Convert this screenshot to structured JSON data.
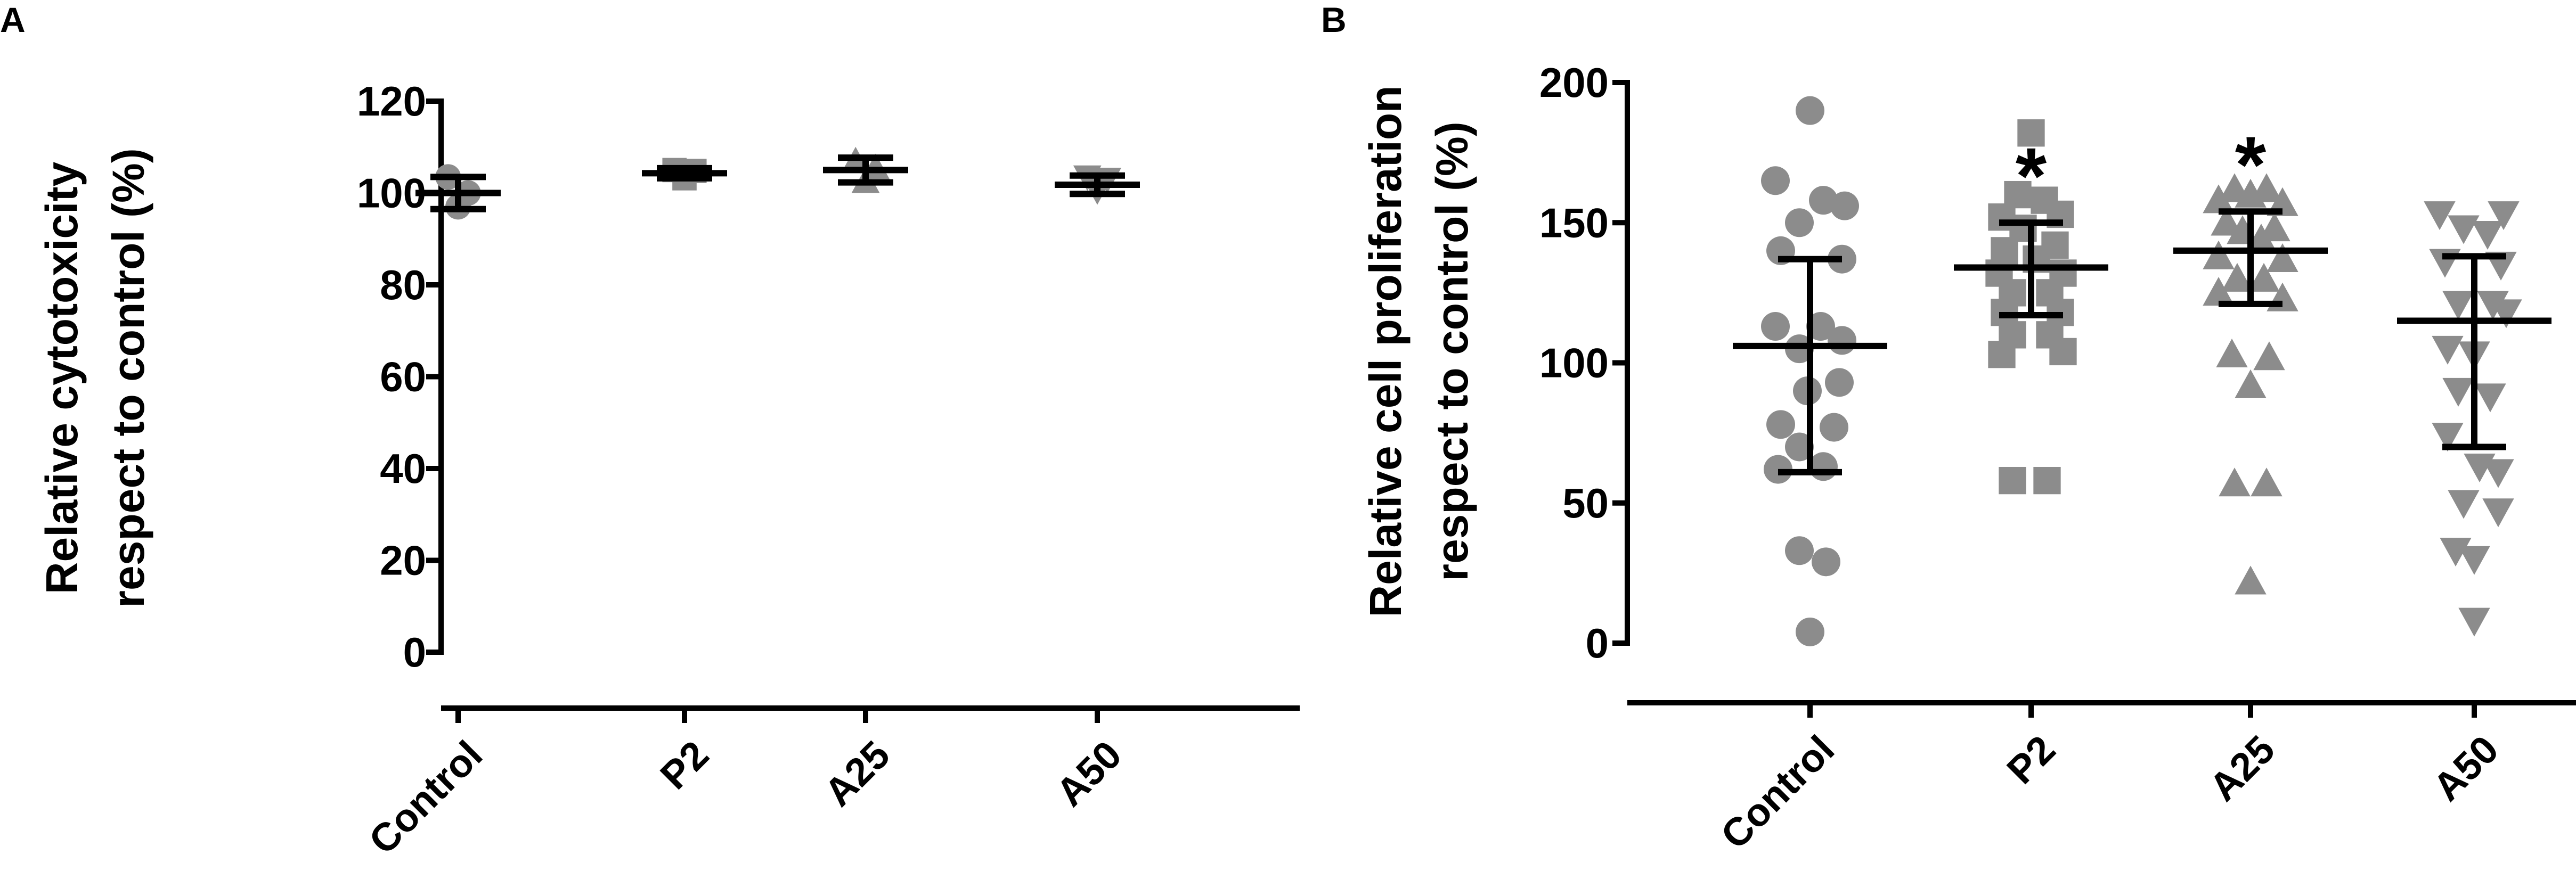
{
  "chart_data": [
    {
      "panel": "A",
      "type": "scatter",
      "ylabel_lines": [
        "Relative cytotoxicity",
        "respect to control (%)"
      ],
      "ylim": [
        0,
        120
      ],
      "yticks": [
        0,
        20,
        40,
        60,
        80,
        100,
        120
      ],
      "categories": [
        "Control",
        "P2",
        "A25",
        "A50"
      ],
      "markers": [
        "circle",
        "square",
        "triangle-up",
        "triangle-down"
      ],
      "color": "#8c8c8c",
      "significance": [
        "",
        "",
        "",
        ""
      ],
      "series": [
        {
          "category": "Control",
          "mean": 100,
          "sd_low": 96.5,
          "sd_high": 103.5,
          "points": [
            {
              "dx": -0.25,
              "y": 103.5
            },
            {
              "dx": 0.0,
              "y": 97.0
            },
            {
              "dx": 0.25,
              "y": 100.0
            }
          ]
        },
        {
          "category": "P2",
          "mean": 104.3,
          "sd_low": 103.2,
          "sd_high": 105.4,
          "points": [
            {
              "dx": -0.25,
              "y": 105.0
            },
            {
              "dx": 0.0,
              "y": 103.2
            },
            {
              "dx": 0.25,
              "y": 104.8
            }
          ]
        },
        {
          "category": "A25",
          "mean": 105,
          "sd_low": 102.3,
          "sd_high": 107.7,
          "points": [
            {
              "dx": -0.25,
              "y": 107.0
            },
            {
              "dx": 0.0,
              "y": 102.5
            },
            {
              "dx": 0.25,
              "y": 105.5
            }
          ]
        },
        {
          "category": "A50",
          "mean": 101.8,
          "sd_low": 99.8,
          "sd_high": 103.8,
          "points": [
            {
              "dx": -0.25,
              "y": 103.5
            },
            {
              "dx": 0.0,
              "y": 100.5
            },
            {
              "dx": 0.25,
              "y": 103.0
            }
          ]
        }
      ]
    },
    {
      "panel": "B",
      "type": "scatter",
      "ylabel_lines": [
        "Relative cell proliferation",
        "respect to control (%)"
      ],
      "ylim": [
        0,
        200
      ],
      "yticks": [
        0,
        50,
        100,
        150,
        200
      ],
      "categories": [
        "Control",
        "P2",
        "A25",
        "A50"
      ],
      "markers": [
        "circle",
        "square",
        "triangle-up",
        "triangle-down"
      ],
      "color": "#8c8c8c",
      "significance": [
        "",
        "*",
        "*",
        ""
      ],
      "series": [
        {
          "category": "Control",
          "mean": 106,
          "sd_low": 61,
          "sd_high": 137,
          "points": [
            {
              "dx": 0.0,
              "y": 190
            },
            {
              "dx": -0.65,
              "y": 165
            },
            {
              "dx": 0.25,
              "y": 158
            },
            {
              "dx": 0.65,
              "y": 156
            },
            {
              "dx": -0.2,
              "y": 150
            },
            {
              "dx": -0.55,
              "y": 140
            },
            {
              "dx": 0.6,
              "y": 137
            },
            {
              "dx": -0.65,
              "y": 113
            },
            {
              "dx": 0.2,
              "y": 113
            },
            {
              "dx": 0.6,
              "y": 108
            },
            {
              "dx": -0.2,
              "y": 105
            },
            {
              "dx": 0.55,
              "y": 93
            },
            {
              "dx": -0.05,
              "y": 90
            },
            {
              "dx": -0.55,
              "y": 78
            },
            {
              "dx": 0.45,
              "y": 77
            },
            {
              "dx": -0.2,
              "y": 70
            },
            {
              "dx": 0.25,
              "y": 63
            },
            {
              "dx": -0.6,
              "y": 62
            },
            {
              "dx": -0.2,
              "y": 33
            },
            {
              "dx": 0.3,
              "y": 29
            },
            {
              "dx": 0.0,
              "y": 4
            }
          ]
        },
        {
          "category": "P2",
          "mean": 134,
          "sd_low": 117,
          "sd_high": 150,
          "points": [
            {
              "dx": 0.0,
              "y": 182
            },
            {
              "dx": -0.25,
              "y": 160
            },
            {
              "dx": 0.25,
              "y": 158
            },
            {
              "dx": -0.55,
              "y": 152
            },
            {
              "dx": 0.55,
              "y": 153
            },
            {
              "dx": -0.15,
              "y": 148
            },
            {
              "dx": 0.45,
              "y": 142
            },
            {
              "dx": -0.5,
              "y": 140
            },
            {
              "dx": 0.1,
              "y": 137
            },
            {
              "dx": -0.6,
              "y": 132
            },
            {
              "dx": 0.6,
              "y": 132
            },
            {
              "dx": -0.35,
              "y": 125
            },
            {
              "dx": 0.35,
              "y": 125
            },
            {
              "dx": -0.5,
              "y": 118
            },
            {
              "dx": 0.55,
              "y": 118
            },
            {
              "dx": -0.35,
              "y": 110
            },
            {
              "dx": 0.35,
              "y": 110
            },
            {
              "dx": -0.55,
              "y": 103
            },
            {
              "dx": 0.6,
              "y": 104
            },
            {
              "dx": -0.35,
              "y": 58
            },
            {
              "dx": 0.3,
              "y": 58
            }
          ]
        },
        {
          "category": "A25",
          "mean": 140,
          "sd_low": 121,
          "sd_high": 154,
          "points": [
            {
              "dx": -0.3,
              "y": 162
            },
            {
              "dx": 0.3,
              "y": 162
            },
            {
              "dx": -0.6,
              "y": 158
            },
            {
              "dx": 0.0,
              "y": 160
            },
            {
              "dx": 0.6,
              "y": 157
            },
            {
              "dx": -0.45,
              "y": 150
            },
            {
              "dx": 0.45,
              "y": 148
            },
            {
              "dx": -0.15,
              "y": 147
            },
            {
              "dx": 0.2,
              "y": 144
            },
            {
              "dx": -0.6,
              "y": 138
            },
            {
              "dx": 0.6,
              "y": 137
            },
            {
              "dx": -0.25,
              "y": 130
            },
            {
              "dx": 0.25,
              "y": 130
            },
            {
              "dx": -0.6,
              "y": 125
            },
            {
              "dx": 0.6,
              "y": 123
            },
            {
              "dx": -0.35,
              "y": 103
            },
            {
              "dx": 0.35,
              "y": 102
            },
            {
              "dx": 0.0,
              "y": 92
            },
            {
              "dx": -0.3,
              "y": 57
            },
            {
              "dx": 0.3,
              "y": 57
            },
            {
              "dx": 0.0,
              "y": 22
            }
          ]
        },
        {
          "category": "A50",
          "mean": 115,
          "sd_low": 70,
          "sd_high": 138,
          "points": [
            {
              "dx": -0.65,
              "y": 153
            },
            {
              "dx": 0.55,
              "y": 153
            },
            {
              "dx": -0.2,
              "y": 148
            },
            {
              "dx": 0.25,
              "y": 146
            },
            {
              "dx": -0.55,
              "y": 136
            },
            {
              "dx": 0.5,
              "y": 135
            },
            {
              "dx": -0.3,
              "y": 121
            },
            {
              "dx": 0.35,
              "y": 121
            },
            {
              "dx": 0.6,
              "y": 118
            },
            {
              "dx": -0.5,
              "y": 105
            },
            {
              "dx": 0.0,
              "y": 103
            },
            {
              "dx": -0.3,
              "y": 90
            },
            {
              "dx": 0.3,
              "y": 88
            },
            {
              "dx": -0.5,
              "y": 74
            },
            {
              "dx": 0.1,
              "y": 63
            },
            {
              "dx": 0.45,
              "y": 61
            },
            {
              "dx": -0.2,
              "y": 50
            },
            {
              "dx": 0.45,
              "y": 47
            },
            {
              "dx": -0.35,
              "y": 33
            },
            {
              "dx": 0.0,
              "y": 30
            },
            {
              "dx": 0.0,
              "y": 8
            }
          ]
        }
      ]
    }
  ]
}
